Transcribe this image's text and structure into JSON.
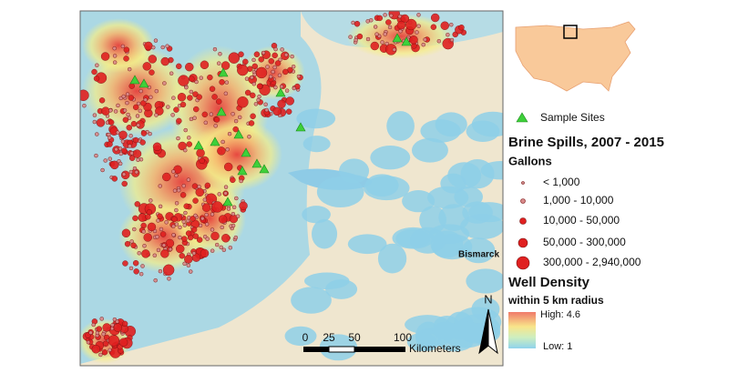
{
  "legend": {
    "sample_sites": "Sample Sites",
    "title": "Brine Spills, 2007 - 2015",
    "subtitle": "Gallons",
    "classes": [
      "< 1,000",
      "1,000 - 10,000",
      "10,000 - 50,000",
      "50,000 - 300,000",
      "300,000 - 2,940,000"
    ],
    "density_title": "Well Density",
    "density_subtitle": "within 5 km radius",
    "high": "High: 4.6",
    "low": "Low: 1"
  },
  "scale_bar": {
    "labels": [
      "0",
      "25",
      "50",
      "100"
    ],
    "unit": "Kilometers"
  },
  "north": "N",
  "map_labels": {
    "city": "Bismarck"
  }
}
